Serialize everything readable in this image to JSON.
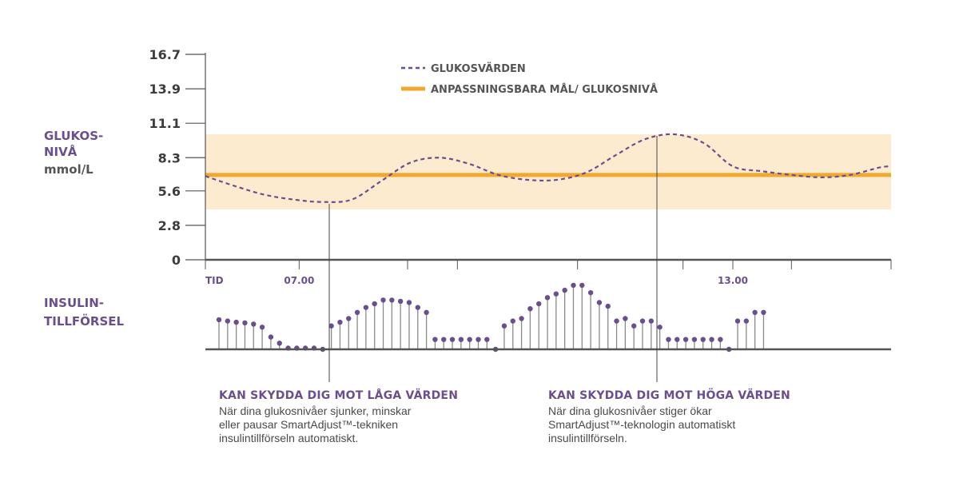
{
  "chart_data": [
    {
      "type": "line",
      "ylabel": [
        "GLUKOS-",
        "NIVÅ",
        "mmol/L"
      ],
      "yticks": [
        "16.7",
        "13.9",
        "11.1",
        "8.3",
        "5.6",
        "2.8",
        "0"
      ],
      "ylim": [
        0,
        16.7
      ],
      "x_labels": [
        {
          "label": "TID",
          "x": 0
        },
        {
          "label": "07.00",
          "x": 1.6
        },
        {
          "label": "13.00",
          "x": 9.0
        }
      ],
      "xlim": [
        0,
        11.7
      ],
      "target_band": [
        4.1,
        10.2
      ],
      "legend_position": "top",
      "series": [
        {
          "name": "GLUKOSVÄRDEN",
          "style": "dashed",
          "color": "#6a4f8c",
          "x": [
            0,
            0.5,
            1.0,
            1.5,
            2.0,
            2.5,
            3.0,
            3.5,
            4.0,
            4.5,
            5.0,
            5.5,
            6.0,
            6.5,
            7.0,
            7.5,
            8.0,
            8.5,
            9.0,
            9.5,
            10.0,
            10.5,
            11.0,
            11.5,
            11.7
          ],
          "values": [
            6.8,
            6.0,
            5.3,
            4.9,
            4.7,
            4.9,
            6.4,
            7.9,
            8.3,
            7.8,
            6.9,
            6.5,
            6.5,
            7.1,
            8.5,
            9.8,
            10.2,
            9.5,
            7.6,
            7.2,
            6.9,
            6.7,
            6.9,
            7.5,
            7.6
          ]
        },
        {
          "name": "ANPASSNINGSBARA MÅL/ GLUKOSNIVÅ",
          "style": "solid",
          "color": "#f0a830",
          "x": [
            0,
            11.7
          ],
          "values": [
            6.9,
            6.9
          ]
        }
      ]
    },
    {
      "type": "stem",
      "ylabel": [
        "INSULIN-",
        "TILLFÖRSEL"
      ],
      "x_step": 0.1475,
      "values": [
        2.4,
        2.3,
        2.2,
        2.15,
        2.05,
        1.8,
        1.0,
        0.5,
        0.1,
        0.1,
        0.1,
        0.1,
        0.0,
        1.9,
        2.2,
        2.5,
        3.0,
        3.4,
        3.7,
        4.0,
        4.0,
        3.9,
        3.8,
        3.4,
        3.0,
        0.8,
        0.8,
        0.8,
        0.8,
        0.8,
        0.8,
        0.8,
        0.0,
        1.9,
        2.3,
        2.5,
        3.3,
        3.7,
        4.2,
        4.5,
        4.8,
        5.2,
        5.2,
        4.6,
        3.8,
        3.5,
        2.3,
        2.5,
        1.9,
        2.3,
        2.3,
        1.8,
        0.8,
        0.8,
        0.8,
        0.8,
        0.8,
        0.8,
        0.8,
        0.0,
        2.3,
        2.3,
        3.0,
        3.0
      ]
    }
  ],
  "annotations": [
    {
      "title": "KAN SKYDDA DIG MOT LÅGA VÄRDEN",
      "lines": [
        "När dina glukosnivåer sjunker, minskar",
        "eller pausar SmartAdjust™-tekniken",
        "insulintillförseln automatiskt."
      ]
    },
    {
      "title": "KAN SKYDDA DIG MOT HÖGA VÄRDEN",
      "lines": [
        "När dina glukosnivåer stiger ökar",
        "SmartAdjust™-teknologin automatiskt",
        "insulintillförseln."
      ]
    }
  ],
  "colors": {
    "glucose": "#6a4f8c",
    "target": "#f0a830",
    "band": "#fdebd0",
    "axis": "#555555",
    "stem": "#8a8a8a"
  }
}
